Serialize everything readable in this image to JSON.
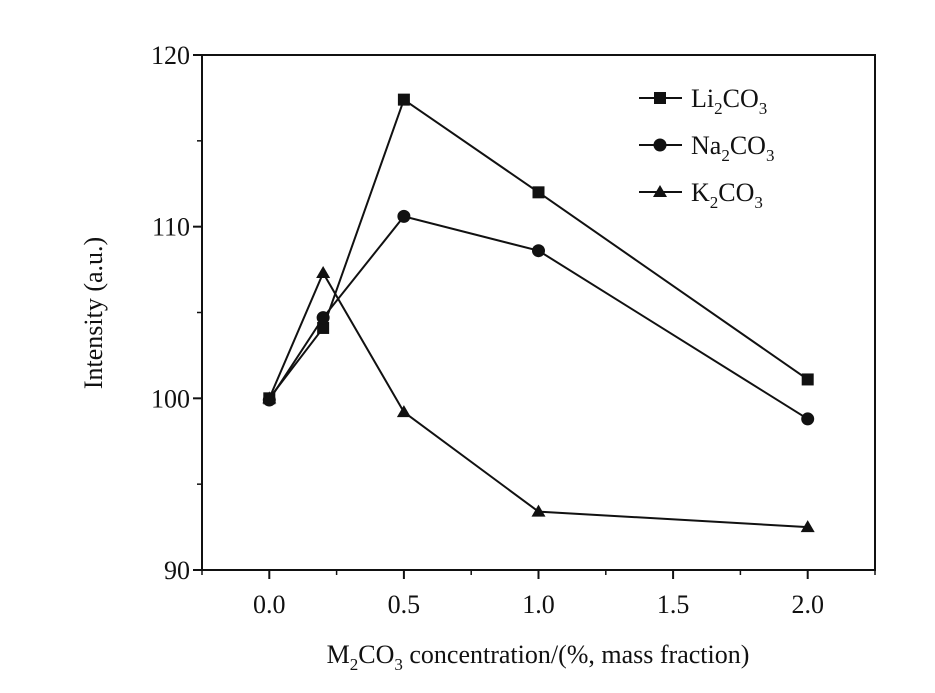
{
  "chart_data": {
    "type": "line",
    "xlabel_parts": [
      "M",
      "2",
      "CO",
      "3",
      " concentration/(%, mass fraction)"
    ],
    "ylabel": "Intensity (a.u.)",
    "x_tick_labels": [
      "0.0",
      "0.5",
      "1.0",
      "1.5",
      "2.0"
    ],
    "y_tick_labels": [
      "90",
      "100",
      "110",
      "120"
    ],
    "xlim": [
      -0.25,
      2.25
    ],
    "ylim": [
      90,
      120
    ],
    "grid": false,
    "legend_position": "top-right",
    "series": [
      {
        "name": "Li2CO3",
        "name_parts": [
          "Li",
          "2",
          "CO",
          "3"
        ],
        "marker": "square",
        "x": [
          0.0,
          0.2,
          0.5,
          1.0,
          2.0
        ],
        "y": [
          100.0,
          104.1,
          117.4,
          112.0,
          101.1
        ]
      },
      {
        "name": "Na2CO3",
        "name_parts": [
          "Na",
          "2",
          "CO",
          "3"
        ],
        "marker": "circle",
        "x": [
          0.0,
          0.2,
          0.5,
          1.0,
          2.0
        ],
        "y": [
          99.9,
          104.7,
          110.6,
          108.6,
          98.8
        ]
      },
      {
        "name": "K2CO3",
        "name_parts": [
          "K",
          "2",
          "CO",
          "3"
        ],
        "marker": "triangle",
        "x": [
          0.0,
          0.2,
          0.5,
          1.0,
          2.0
        ],
        "y": [
          100.0,
          107.3,
          99.2,
          93.4,
          92.5
        ]
      }
    ]
  }
}
